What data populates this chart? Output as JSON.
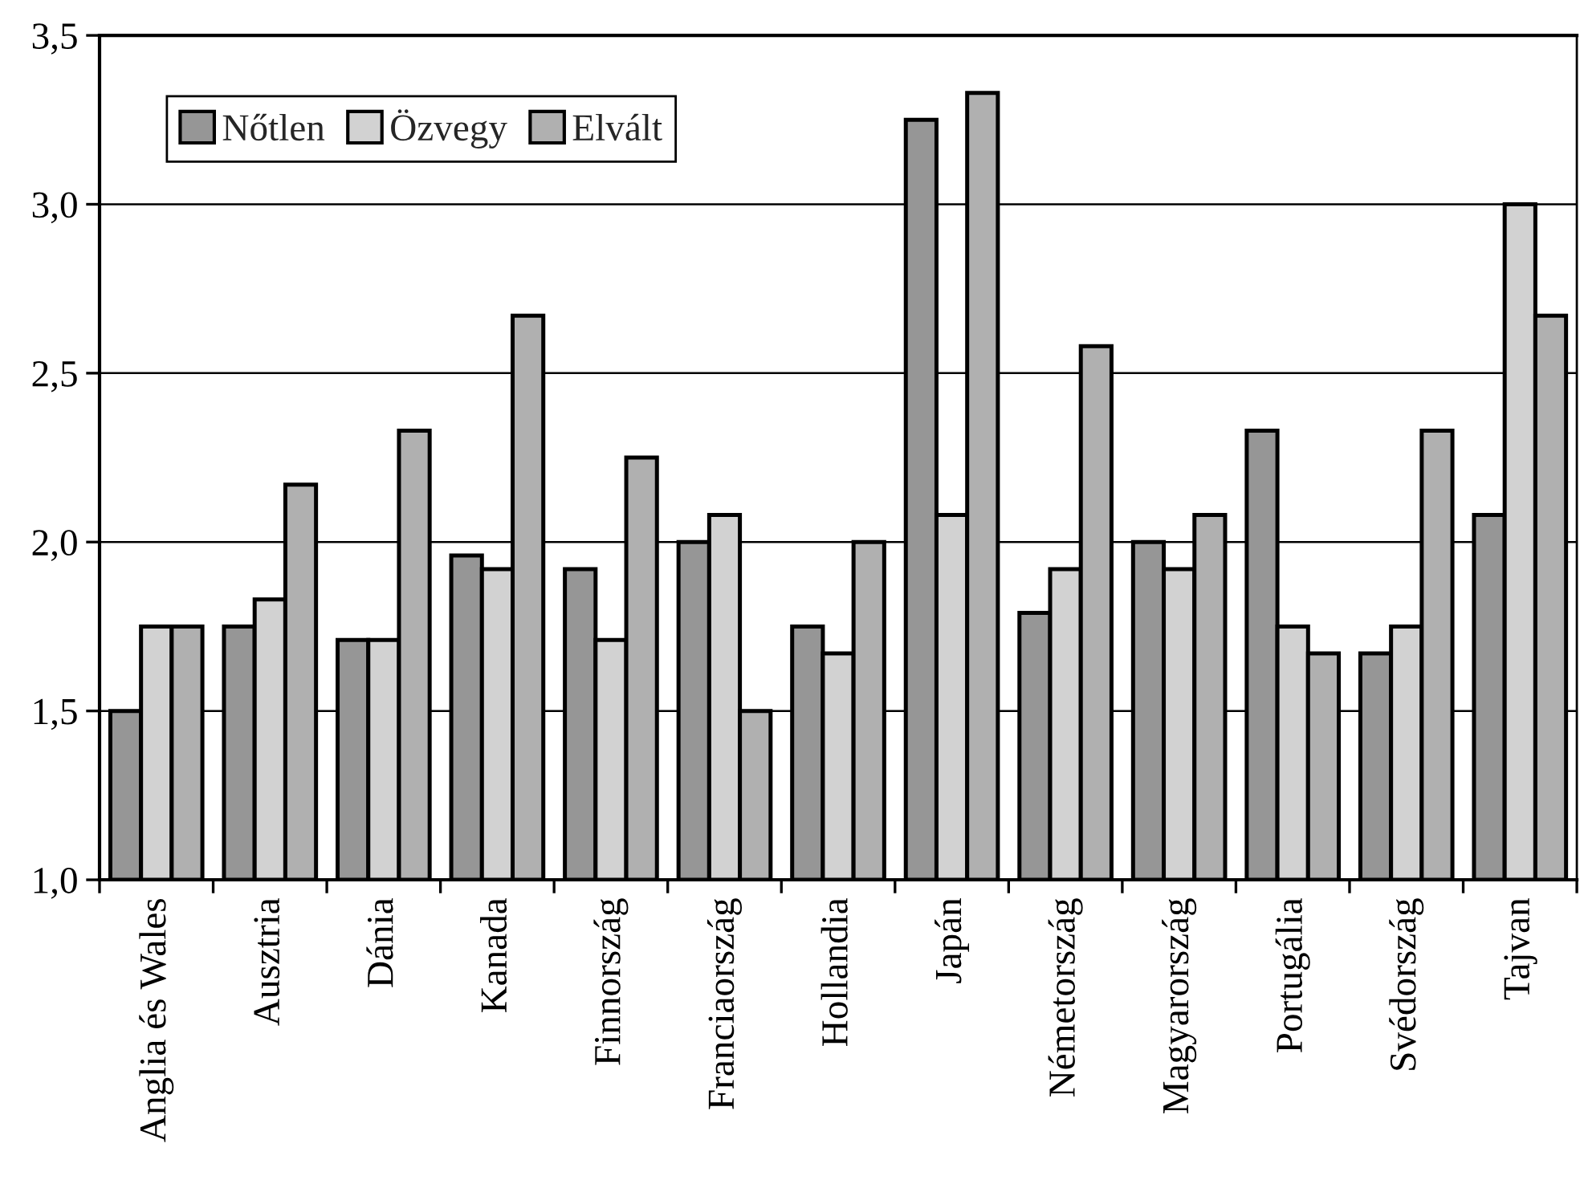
{
  "chart_data": {
    "type": "bar",
    "categories": [
      "Anglia és Wales",
      "Ausztria",
      "Dánia",
      "Kanada",
      "Finnország",
      "Franciaország",
      "Hollandia",
      "Japán",
      "Németország",
      "Magyarország",
      "Portugália",
      "Svédország",
      "Tajvan"
    ],
    "series": [
      {
        "name": "Nőtlen",
        "color": "#969696",
        "values": [
          1.5,
          1.75,
          1.71,
          1.96,
          1.92,
          2.0,
          1.75,
          3.25,
          1.79,
          2.0,
          2.33,
          1.67,
          2.08
        ]
      },
      {
        "name": "Özvegy",
        "color": "#d2d2d2",
        "values": [
          1.75,
          1.83,
          1.71,
          1.92,
          1.71,
          2.08,
          1.67,
          2.08,
          1.92,
          1.92,
          1.75,
          1.75,
          3.0
        ]
      },
      {
        "name": "Elvált",
        "color": "#b0b0b0",
        "values": [
          1.75,
          2.17,
          2.33,
          2.67,
          2.25,
          1.5,
          2.0,
          3.33,
          2.58,
          2.08,
          1.67,
          2.33,
          2.67
        ]
      }
    ],
    "ylim": [
      1.0,
      3.5
    ],
    "yticks": [
      {
        "value": 1.0,
        "label": "1,0"
      },
      {
        "value": 1.5,
        "label": "1,5"
      },
      {
        "value": 2.0,
        "label": "2,0"
      },
      {
        "value": 2.5,
        "label": "2,5"
      },
      {
        "value": 3.0,
        "label": "3,0"
      },
      {
        "value": 3.5,
        "label": "3,5"
      }
    ],
    "grid": "y",
    "legend": "top left"
  }
}
